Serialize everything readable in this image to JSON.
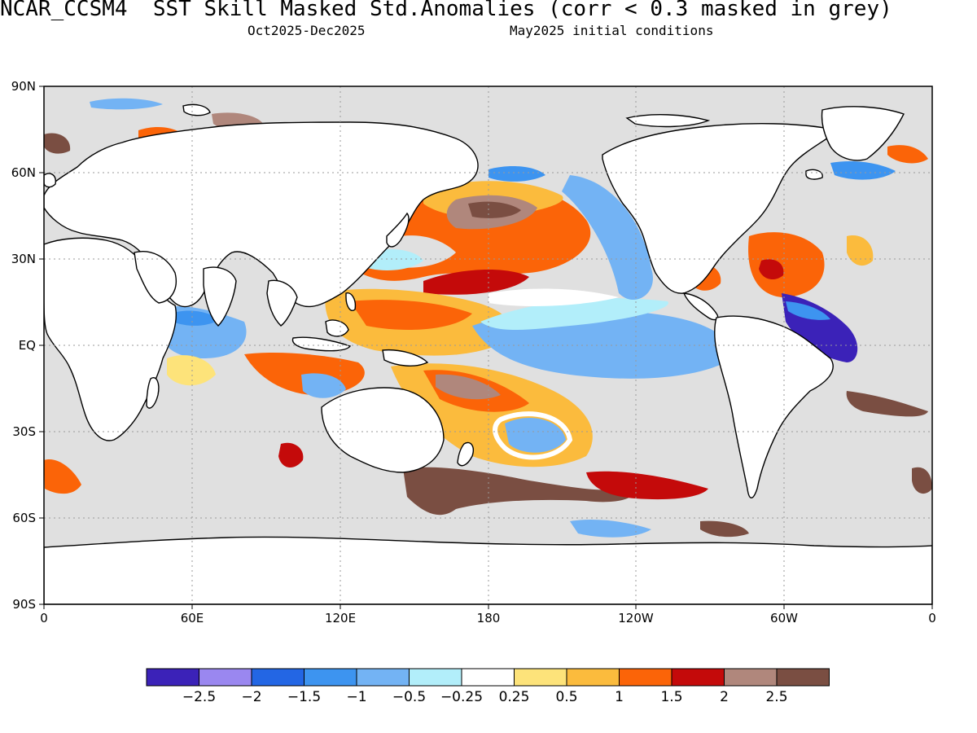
{
  "title": {
    "model": "NCAR_CCSM4",
    "text": "SST Skill Masked Std.Anomalies (corr < 0.3 masked in grey)",
    "period": "Oct2025-Dec2025",
    "init": "May2025 initial conditions"
  },
  "axes": {
    "lat_labels": [
      "90N",
      "60N",
      "30N",
      "EQ",
      "30S",
      "60S",
      "90S"
    ],
    "lon_labels": [
      "0",
      "60E",
      "120E",
      "180",
      "120W",
      "60W",
      "0"
    ],
    "grid": "dotted"
  },
  "colorbar": {
    "colors": [
      "#3b22b8",
      "#9a87f0",
      "#2366e4",
      "#3d94f0",
      "#73b3f4",
      "#b2eefa",
      "#ffffff",
      "#fde37a",
      "#fbbb3d",
      "#fb6408",
      "#c40a0a",
      "#b0877c",
      "#7a4e42"
    ],
    "labels": [
      "-2.5",
      "-2",
      "-1.5",
      "-1",
      "-0.5",
      "-0.25",
      "0.25",
      "0.5",
      "1",
      "1.5",
      "2",
      "2.5"
    ]
  },
  "mask_color": "#e0e0e0"
}
